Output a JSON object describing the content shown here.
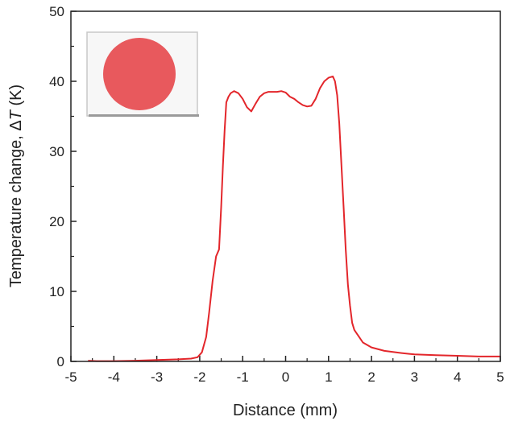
{
  "chart_data": {
    "type": "line",
    "xlabel": "Distance (mm)",
    "ylabel_main": "Temperature change, Δ",
    "ylabel_var": "T",
    "ylabel_unit": " (K)",
    "xlim": [
      -5,
      5
    ],
    "ylim": [
      0,
      50
    ],
    "xticks": [
      -5,
      -4,
      -3,
      -2,
      -1,
      0,
      1,
      2,
      3,
      4,
      5
    ],
    "yticks": [
      0,
      10,
      20,
      30,
      40,
      50
    ],
    "grid": false,
    "line_color": "#e3262b",
    "inset": {
      "description": "red circle",
      "fill_color": "#e8595d"
    },
    "series": [
      {
        "x": [
          -4.6,
          -4.4,
          -4.0,
          -3.5,
          -3.0,
          -2.5,
          -2.2,
          -2.05,
          -1.95,
          -1.85,
          -1.78,
          -1.7,
          -1.62,
          -1.55,
          -1.5,
          -1.46,
          -1.42,
          -1.38,
          -1.33,
          -1.28,
          -1.2,
          -1.1,
          -1.0,
          -0.9,
          -0.8,
          -0.7,
          -0.6,
          -0.5,
          -0.4,
          -0.3,
          -0.2,
          -0.1,
          0.0,
          0.1,
          0.2,
          0.3,
          0.4,
          0.5,
          0.6,
          0.7,
          0.8,
          0.9,
          1.0,
          1.1,
          1.15,
          1.2,
          1.25,
          1.3,
          1.35,
          1.4,
          1.45,
          1.5,
          1.55,
          1.6,
          1.7,
          1.8,
          2.0,
          2.3,
          2.7,
          3.0,
          3.5,
          4.0,
          4.5,
          5.0
        ],
        "y": [
          0.1,
          0.05,
          0.05,
          0.1,
          0.2,
          0.3,
          0.4,
          0.6,
          1.3,
          3.5,
          7.0,
          11.5,
          15.0,
          16.0,
          22.0,
          28.0,
          33.0,
          37.0,
          37.8,
          38.3,
          38.6,
          38.3,
          37.5,
          36.3,
          35.7,
          36.8,
          37.8,
          38.3,
          38.5,
          38.5,
          38.5,
          38.6,
          38.4,
          37.8,
          37.5,
          37.0,
          36.6,
          36.4,
          36.5,
          37.5,
          39.0,
          40.0,
          40.5,
          40.7,
          40.0,
          38.0,
          34.0,
          28.0,
          22.0,
          16.0,
          11.0,
          8.0,
          5.5,
          4.5,
          3.6,
          2.7,
          2.0,
          1.5,
          1.2,
          1.0,
          0.9,
          0.8,
          0.7,
          0.7
        ]
      }
    ]
  }
}
